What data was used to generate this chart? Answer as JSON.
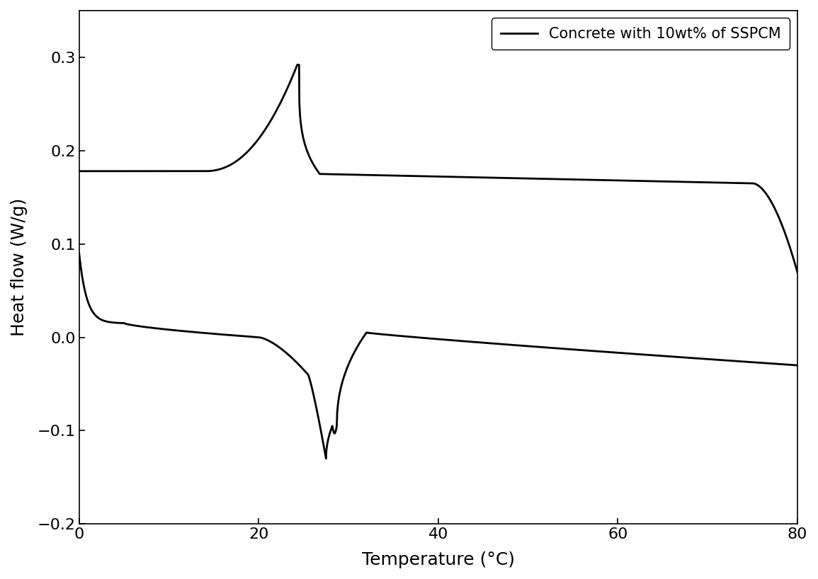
{
  "xlabel": "Temperature (°C)",
  "ylabel": "Heat flow (W/g)",
  "legend_label": "Concrete with 10wt% of SSPCM",
  "line_color": "#000000",
  "background_color": "#ffffff",
  "xlim": [
    0,
    80
  ],
  "ylim": [
    -0.2,
    0.35
  ],
  "xticks": [
    0,
    20,
    40,
    60,
    80
  ],
  "yticks": [
    -0.2,
    -0.1,
    0.0,
    0.1,
    0.2,
    0.3
  ],
  "xlabel_fontsize": 18,
  "ylabel_fontsize": 18,
  "tick_fontsize": 16,
  "legend_fontsize": 15,
  "line_width": 2.0
}
